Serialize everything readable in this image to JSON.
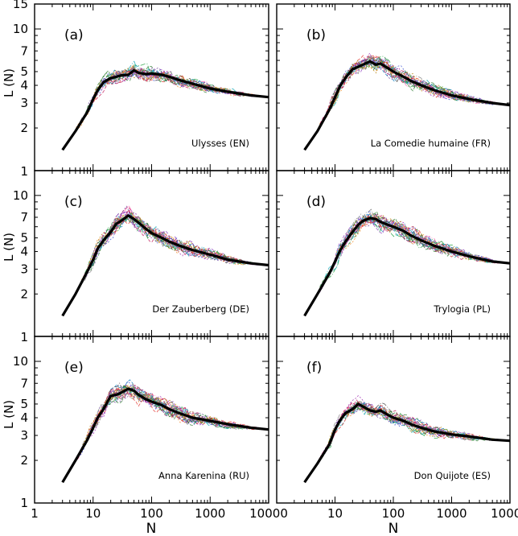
{
  "figure": {
    "ylabel": "L (N)",
    "xlabel": "N",
    "x_ticks": [
      {
        "value": 1,
        "label": "1"
      },
      {
        "value": 10,
        "label": "10"
      },
      {
        "value": 100,
        "label": "100"
      },
      {
        "value": 1000,
        "label": "1000"
      },
      {
        "value": 10000,
        "label": "10000"
      }
    ],
    "y_ticks": [
      {
        "value": 1,
        "label": "1"
      },
      {
        "value": 2,
        "label": "2"
      },
      {
        "value": 3,
        "label": "3"
      },
      {
        "value": 4,
        "label": "4"
      },
      {
        "value": 5,
        "label": "5"
      },
      {
        "value": 7,
        "label": "7"
      },
      {
        "value": 10,
        "label": "10"
      },
      {
        "value": 15,
        "label": "15"
      }
    ],
    "colors": {
      "mean_line": "#000000",
      "individual": [
        "#8e3fbf",
        "#3b4fd1",
        "#1b9e3a",
        "#e3342f",
        "#f08a24",
        "#11a6b4",
        "#c2185b",
        "#6a3d9a",
        "#7f7f7f",
        "#2e7d32",
        "#b8860b",
        "#ff6fb5",
        "#0077bb",
        "#9c27b0",
        "#444444"
      ]
    }
  },
  "chart_data": [
    {
      "type": "line",
      "id": "a",
      "panel_label": "(a)",
      "title": "Ulysses  (EN)",
      "xscale": "log",
      "yscale": "log",
      "xlim": [
        1,
        10000
      ],
      "ylim": [
        1,
        15
      ],
      "show_ytick_labels": true,
      "show_xtick_labels": false,
      "show_y_top_label": true,
      "series": [
        {
          "name": "mean",
          "x": [
            3,
            5,
            8,
            10,
            12,
            15,
            20,
            25,
            30,
            40,
            50,
            60,
            80,
            100,
            150,
            200,
            300,
            500,
            1000,
            2000,
            5000,
            10000
          ],
          "y": [
            1.4,
            1.9,
            2.6,
            3.2,
            3.7,
            4.2,
            4.5,
            4.6,
            4.7,
            4.75,
            5.1,
            4.9,
            4.8,
            4.85,
            4.75,
            4.6,
            4.35,
            4.1,
            3.8,
            3.6,
            3.4,
            3.3
          ]
        }
      ],
      "spread": 0.2,
      "legend": "none"
    },
    {
      "type": "line",
      "id": "b",
      "panel_label": "(b)",
      "title": "La Comedie humaine  (FR)",
      "xscale": "log",
      "yscale": "log",
      "xlim": [
        1,
        10000
      ],
      "ylim": [
        1,
        15
      ],
      "show_ytick_labels": false,
      "show_xtick_labels": false,
      "show_y_top_label": false,
      "series": [
        {
          "name": "mean",
          "x": [
            3,
            5,
            8,
            10,
            12,
            15,
            20,
            25,
            30,
            40,
            50,
            60,
            80,
            100,
            150,
            200,
            300,
            500,
            1000,
            2000,
            5000,
            10000
          ],
          "y": [
            1.4,
            1.9,
            2.7,
            3.3,
            3.9,
            4.5,
            5.2,
            5.4,
            5.6,
            5.9,
            5.6,
            5.7,
            5.3,
            5.0,
            4.6,
            4.3,
            4.0,
            3.7,
            3.4,
            3.2,
            3.0,
            2.9
          ]
        }
      ],
      "spread": 0.22,
      "legend": "none"
    },
    {
      "type": "line",
      "id": "c",
      "panel_label": "(c)",
      "title": "Der Zauberberg  (DE)",
      "xscale": "log",
      "yscale": "log",
      "xlim": [
        1,
        10000
      ],
      "ylim": [
        1,
        15
      ],
      "show_ytick_labels": true,
      "show_xtick_labels": false,
      "show_y_top_label": false,
      "series": [
        {
          "name": "mean",
          "x": [
            3,
            5,
            8,
            10,
            12,
            15,
            20,
            25,
            30,
            40,
            50,
            60,
            80,
            100,
            150,
            200,
            300,
            500,
            1000,
            2000,
            5000,
            10000
          ],
          "y": [
            1.4,
            2.0,
            2.9,
            3.5,
            4.2,
            4.8,
            5.5,
            6.3,
            6.6,
            7.2,
            6.8,
            6.4,
            5.8,
            5.4,
            5.0,
            4.7,
            4.4,
            4.1,
            3.8,
            3.5,
            3.3,
            3.2
          ]
        }
      ],
      "spread": 0.25,
      "legend": "none"
    },
    {
      "type": "line",
      "id": "d",
      "panel_label": "(d)",
      "title": "Trylogia  (PL)",
      "xscale": "log",
      "yscale": "log",
      "xlim": [
        1,
        10000
      ],
      "ylim": [
        1,
        15
      ],
      "show_ytick_labels": false,
      "show_xtick_labels": false,
      "show_y_top_label": false,
      "series": [
        {
          "name": "mean",
          "x": [
            3,
            5,
            8,
            10,
            12,
            15,
            20,
            25,
            30,
            40,
            50,
            60,
            80,
            100,
            150,
            200,
            300,
            500,
            1000,
            2000,
            5000,
            10000
          ],
          "y": [
            1.4,
            2.0,
            2.8,
            3.4,
            4.0,
            4.7,
            5.5,
            6.2,
            6.6,
            6.9,
            6.8,
            6.5,
            6.2,
            6.0,
            5.6,
            5.2,
            4.8,
            4.4,
            4.0,
            3.7,
            3.4,
            3.3
          ]
        }
      ],
      "spread": 0.25,
      "legend": "none"
    },
    {
      "type": "line",
      "id": "e",
      "panel_label": "(e)",
      "title": "Anna Karenina (RU)",
      "xscale": "log",
      "yscale": "log",
      "xlim": [
        1,
        10000
      ],
      "ylim": [
        1,
        15
      ],
      "show_ytick_labels": true,
      "show_xtick_labels": true,
      "show_y_top_label": false,
      "series": [
        {
          "name": "mean",
          "x": [
            3,
            5,
            8,
            10,
            12,
            15,
            20,
            25,
            30,
            40,
            50,
            60,
            80,
            100,
            150,
            200,
            300,
            500,
            1000,
            2000,
            5000,
            10000
          ],
          "y": [
            1.4,
            2.0,
            2.8,
            3.4,
            4.0,
            4.6,
            5.7,
            5.8,
            6.0,
            6.4,
            6.2,
            5.8,
            5.4,
            5.2,
            4.9,
            4.6,
            4.3,
            4.0,
            3.8,
            3.6,
            3.4,
            3.3
          ]
        }
      ],
      "spread": 0.25,
      "legend": "none"
    },
    {
      "type": "line",
      "id": "f",
      "panel_label": "(f)",
      "title": "Don Quijote  (ES)",
      "xscale": "log",
      "yscale": "log",
      "xlim": [
        1,
        10000
      ],
      "ylim": [
        1,
        15
      ],
      "show_ytick_labels": false,
      "show_xtick_labels": true,
      "show_y_top_label": false,
      "series": [
        {
          "name": "mean",
          "x": [
            3,
            5,
            8,
            10,
            12,
            15,
            20,
            25,
            30,
            40,
            50,
            60,
            80,
            100,
            150,
            200,
            300,
            500,
            1000,
            2000,
            5000,
            10000
          ],
          "y": [
            1.4,
            1.9,
            2.6,
            3.3,
            3.8,
            4.3,
            4.6,
            5.0,
            4.8,
            4.5,
            4.4,
            4.5,
            4.2,
            4.0,
            3.8,
            3.6,
            3.4,
            3.2,
            3.05,
            2.95,
            2.8,
            2.75
          ]
        }
      ],
      "spread": 0.2,
      "legend": "none"
    }
  ]
}
